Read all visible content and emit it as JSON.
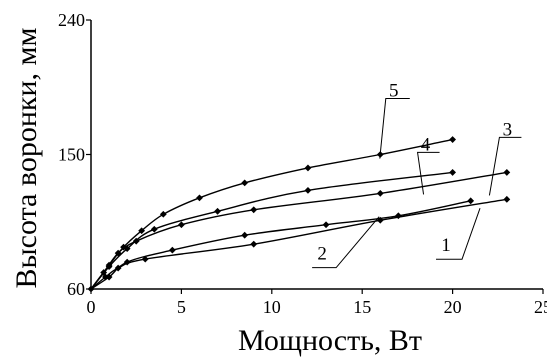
{
  "chart_data": {
    "type": "line",
    "title": "",
    "xlabel": "Мощность, Вт",
    "ylabel": "Высота воронки, мм",
    "xlim": [
      0,
      25
    ],
    "ylim": [
      60,
      240
    ],
    "xticks": [
      0,
      5,
      10,
      15,
      20,
      25
    ],
    "yticks": [
      60,
      150,
      240
    ],
    "grid": false,
    "legend": "none",
    "colors": {
      "line": "#000000",
      "marker": "#000000",
      "axis": "#000000"
    },
    "series": [
      {
        "name": "1",
        "x": [
          0,
          0.8,
          1.5,
          3,
          9,
          16,
          23
        ],
        "y": [
          60,
          68,
          74,
          80,
          90,
          106,
          120
        ],
        "label_at": [
          20.3,
          94
        ]
      },
      {
        "name": "2",
        "x": [
          0,
          1,
          2,
          4.5,
          8.5,
          13,
          17,
          21
        ],
        "y": [
          60,
          68,
          78,
          86,
          96,
          103,
          109,
          119
        ],
        "label_at": [
          14,
          89
        ]
      },
      {
        "name": "3",
        "x": [
          0,
          0.7,
          1.5,
          2.5,
          5,
          9,
          16,
          23
        ],
        "y": [
          60,
          71,
          84,
          92,
          103,
          113,
          124,
          138
        ],
        "label_at": [
          22.7,
          136
        ]
      },
      {
        "name": "4",
        "x": [
          0,
          1,
          2,
          3.5,
          7,
          12,
          20
        ],
        "y": [
          60,
          75,
          87,
          100,
          112,
          126,
          138
        ],
        "label_at": [
          19.5,
          134
        ]
      },
      {
        "name": "5",
        "x": [
          0,
          1,
          1.8,
          2.8,
          4,
          6,
          8.5,
          12,
          16,
          20
        ],
        "y": [
          60,
          76,
          88,
          99,
          110,
          121,
          131,
          141,
          150,
          160
        ],
        "label_at": [
          17.3,
          154
        ]
      }
    ]
  }
}
